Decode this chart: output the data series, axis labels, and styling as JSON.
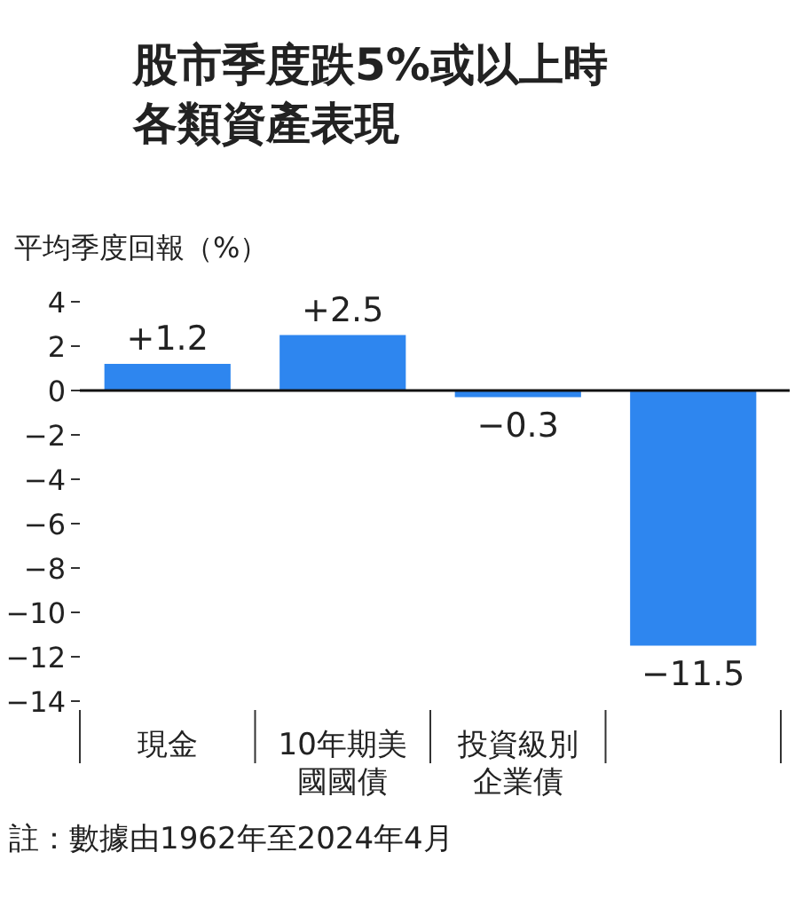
{
  "chart_data": {
    "type": "bar",
    "title": "股市季度跌5%或以上時各類資產表現",
    "ylabel": "平均季度回報（%）",
    "categories": [
      "現金",
      "10年期美國國債",
      "投資級別企業債",
      null
    ],
    "values": [
      1.2,
      2.5,
      -0.3,
      -11.5
    ],
    "value_labels": [
      "+1.2",
      "+2.5",
      "−0.3",
      "−11.5"
    ],
    "color": "#2e86ef",
    "ylim": [
      -14,
      4
    ],
    "yticks": [
      {
        "value": 4,
        "label": "4"
      },
      {
        "value": 2,
        "label": "2"
      },
      {
        "value": 0,
        "label": "0"
      },
      {
        "value": -2,
        "label": "−2"
      },
      {
        "value": -4,
        "label": "−4"
      },
      {
        "value": -6,
        "label": "−6"
      },
      {
        "value": -8,
        "label": "−8"
      },
      {
        "value": -10,
        "label": "−10"
      },
      {
        "value": -12,
        "label": "−12"
      },
      {
        "value": -14,
        "label": "−14"
      }
    ],
    "annotations": [
      "註：數據由1962年至2024年4月"
    ]
  }
}
